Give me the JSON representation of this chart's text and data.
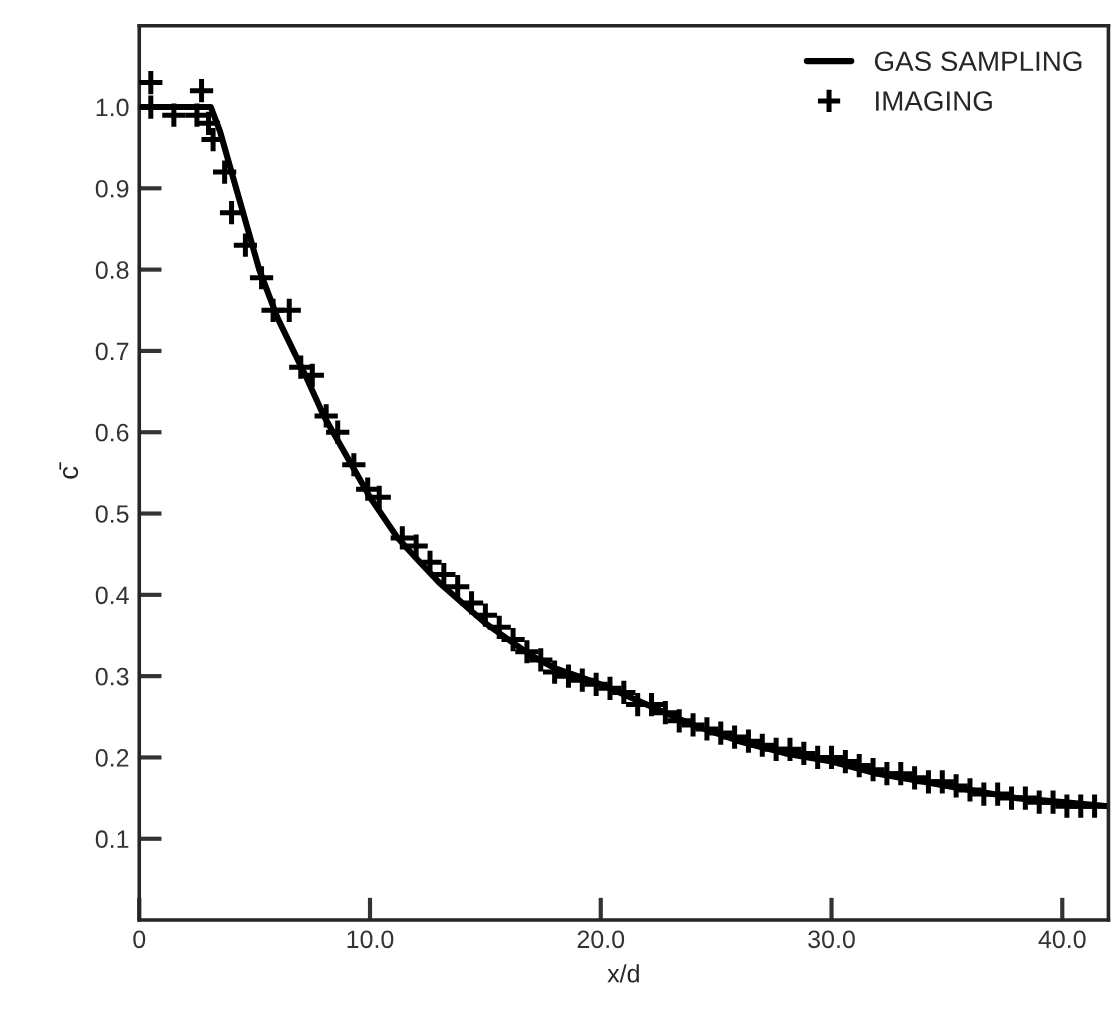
{
  "chart_data": {
    "type": "line",
    "xlabel": "x/d",
    "ylabel": "c̄",
    "xlim": [
      0,
      42
    ],
    "ylim": [
      0,
      1.1
    ],
    "xticks": [
      0,
      {
        "value": 10,
        "label": "10.0"
      },
      {
        "value": 20,
        "label": "20.0"
      },
      {
        "value": 30,
        "label": "30.0"
      },
      {
        "value": 40,
        "label": "40.0"
      }
    ],
    "yticks": [
      0.1,
      0.2,
      0.3,
      0.4,
      0.5,
      0.6,
      0.7,
      0.8,
      0.9,
      {
        "value": 1,
        "label": "1.0"
      }
    ],
    "grid": false,
    "legend": "top right",
    "series": [
      {
        "name": "GAS SAMPLING",
        "color": "#000000",
        "line_style": "solid",
        "marker": "none",
        "x": [
          0,
          1,
          2,
          3.1,
          3.5,
          4,
          4.5,
          5.2,
          6,
          7.2,
          8,
          9.2,
          10,
          11.2,
          12,
          13,
          14,
          15,
          16,
          17,
          18,
          19,
          20,
          22,
          24,
          25,
          26,
          28,
          30,
          32,
          34,
          35,
          36,
          38,
          40,
          42
        ],
        "values": [
          1.0,
          1.0,
          1.0,
          1.0,
          0.97,
          0.92,
          0.87,
          0.8,
          0.74,
          0.67,
          0.62,
          0.56,
          0.52,
          0.47,
          0.445,
          0.415,
          0.39,
          0.365,
          0.345,
          0.325,
          0.31,
          0.3,
          0.29,
          0.265,
          0.24,
          0.23,
          0.22,
          0.205,
          0.195,
          0.18,
          0.17,
          0.165,
          0.16,
          0.15,
          0.145,
          0.14
        ]
      },
      {
        "name": "IMAGING",
        "type": "scatter",
        "color": "#000000",
        "marker": "cross",
        "x": [
          0.5,
          0.5,
          1.5,
          2.5,
          2.7,
          3.0,
          3.2,
          3.7,
          4.0,
          4.6,
          5.3,
          5.8,
          6.5,
          7.0,
          7.5,
          8.1,
          8.6,
          9.3,
          9.9,
          10.4,
          11.4,
          12.0,
          12.6,
          13.2,
          13.8,
          14.4,
          15.0,
          15.6,
          16.2,
          16.8,
          17.4,
          18.0,
          18.6,
          19.2,
          19.8,
          20.4,
          21.0,
          21.6,
          22.2,
          22.8,
          23.4,
          24.0,
          24.6,
          25.2,
          25.8,
          26.4,
          27.0,
          27.6,
          28.2,
          28.8,
          29.4,
          30.0,
          30.6,
          31.2,
          31.8,
          32.4,
          33.0,
          33.6,
          34.2,
          34.8,
          35.4,
          36.0,
          36.6,
          37.2,
          37.8,
          38.4,
          39.0,
          39.6,
          40.2,
          40.8,
          41.4
        ],
        "values": [
          1.03,
          1.0,
          0.99,
          0.99,
          1.02,
          0.98,
          0.96,
          0.92,
          0.87,
          0.83,
          0.79,
          0.75,
          0.75,
          0.68,
          0.67,
          0.62,
          0.6,
          0.56,
          0.53,
          0.52,
          0.47,
          0.46,
          0.44,
          0.425,
          0.41,
          0.39,
          0.375,
          0.36,
          0.345,
          0.33,
          0.32,
          0.305,
          0.3,
          0.295,
          0.29,
          0.285,
          0.28,
          0.265,
          0.265,
          0.255,
          0.245,
          0.24,
          0.235,
          0.23,
          0.225,
          0.22,
          0.215,
          0.21,
          0.21,
          0.205,
          0.2,
          0.2,
          0.195,
          0.19,
          0.185,
          0.18,
          0.18,
          0.175,
          0.17,
          0.17,
          0.165,
          0.16,
          0.155,
          0.155,
          0.15,
          0.15,
          0.145,
          0.145,
          0.14,
          0.14,
          0.14
        ]
      }
    ]
  }
}
